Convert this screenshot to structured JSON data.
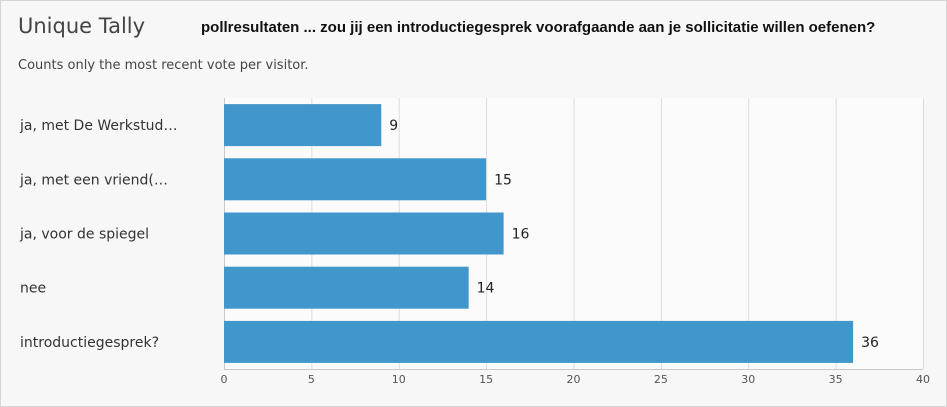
{
  "header": {
    "title": "Unique Tally",
    "question": "pollresultaten ... zou jij een introductiegesprek voorafgaande aan je sollicitatie willen oefenen?",
    "subtitle": "Counts only the most recent vote per visitor."
  },
  "chart_data": {
    "type": "bar",
    "orientation": "horizontal",
    "categories": [
      "ja, met De Werkstud…",
      "ja, met een vriend(…",
      "ja, voor de spiegel",
      "nee",
      "introductiegesprek?"
    ],
    "values": [
      9,
      15,
      16,
      14,
      36
    ],
    "xlim": [
      0,
      40
    ],
    "xticks": [
      0,
      5,
      10,
      15,
      20,
      25,
      30,
      35,
      40
    ],
    "grid": true,
    "bar_color": "#4197cb"
  }
}
